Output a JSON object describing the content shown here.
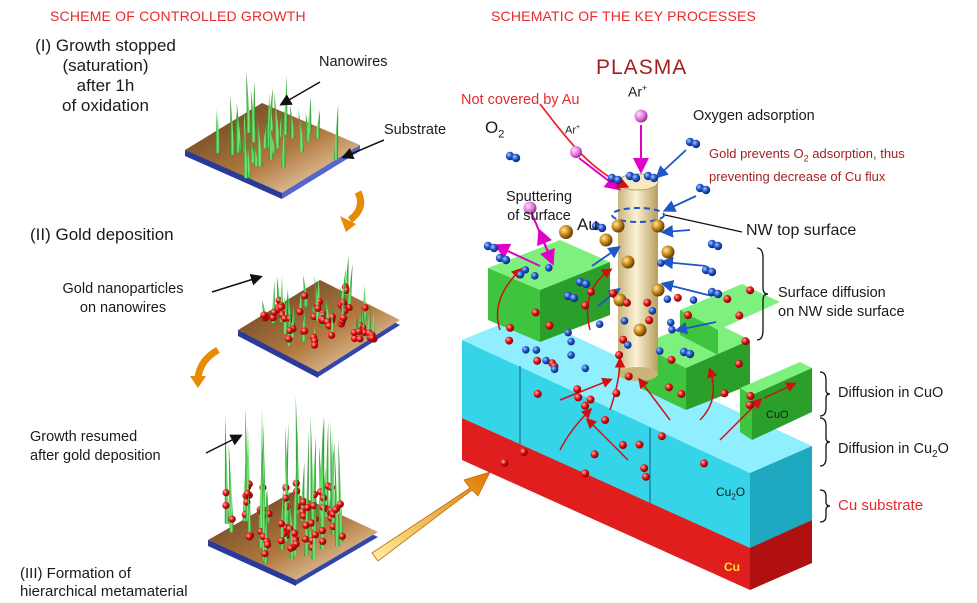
{
  "headers": {
    "left": "SCHEME OF CONTROLLED GROWTH",
    "right": "SCHEMATIC OF THE KEY PROCESSES"
  },
  "left_panel": {
    "step1_lines": [
      "(I) Growth stopped",
      "(saturation)",
      "after 1h",
      "of oxidation"
    ],
    "nanowires": "Nanowires",
    "substrate": "Substrate",
    "step2": "(II) Gold deposition",
    "gold_np_lines": [
      "Gold nanoparticles",
      "on nanowires"
    ],
    "resumed_lines": [
      "Growth resumed",
      "after gold deposition"
    ],
    "step3_lines": [
      "(III) Formation of",
      "hierarchical metamaterial"
    ]
  },
  "right_panel": {
    "plasma": "PLASMA",
    "not_covered": "Not covered by Au",
    "ar_top": "Ar",
    "ar_small": "Ar",
    "ar_sup": "+",
    "o2_main": "O",
    "o2_sub": "2",
    "oxygen_adsorption": "Oxygen adsorption",
    "gold_prevents_lines": [
      "Gold prevents O",
      "2",
      " adsorption, thus",
      "preventing decrease of Cu flux"
    ],
    "sputtering_lines": [
      "Sputtering",
      "of surface"
    ],
    "au": "Au",
    "nw_top": "NW top surface",
    "surface_diffusion_lines": [
      "Surface diffusion",
      "on NW side surface"
    ],
    "diff_cuo": "Diffusion in CuO",
    "diff_cu2o_main": "Diffusion in Cu",
    "diff_cu2o_sub": "2",
    "diff_cu2o_end": "O",
    "cu_substrate": "Cu substrate",
    "block_cuo": "CuO",
    "block_cu2o_main": "Cu",
    "block_cu2o_sub": "2",
    "block_cu2o_end": "O",
    "block_cu": "Cu"
  },
  "colors": {
    "header_red": "#e8292b",
    "cuo_green": "#3ec43e",
    "cu2o_cyan": "#35d4e8",
    "cu_red": "#e11e1e",
    "wire_tan": "#e9d9a8",
    "gold": "#c88a1a",
    "ar_pink": "#e060d8",
    "o2_blue": "#1f56c8",
    "magenta_arrow": "#e000c8"
  }
}
